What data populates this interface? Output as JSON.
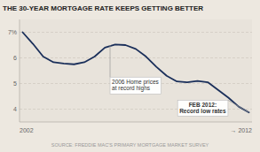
{
  "chart_data": {
    "type": "line",
    "title": "THE 30-YEAR MORTGAGE RATE KEEPS GETTING BETTER",
    "source": "SOURCE: FREDDIE MAC'S PRIMARY MORTGAGE MARKET SURVEY",
    "xlabel_left": "2002",
    "xlabel_right": "→ 2012",
    "x": [
      0,
      1,
      2,
      3,
      4,
      5,
      6,
      7,
      8,
      9,
      10,
      11,
      12,
      13,
      14,
      15,
      16,
      17,
      18,
      19,
      20,
      21,
      22
    ],
    "values": [
      7.0,
      6.55,
      6.05,
      5.83,
      5.78,
      5.75,
      5.83,
      6.05,
      6.4,
      6.52,
      6.5,
      6.35,
      6.05,
      5.65,
      5.3,
      5.08,
      5.05,
      5.1,
      5.05,
      4.75,
      4.45,
      4.1,
      3.87
    ],
    "color": "#1a2f5a",
    "xlim": [
      -0.3,
      22.3
    ],
    "ylim": [
      3.5,
      7.5
    ],
    "yticks": [
      4,
      5,
      6,
      {
        "value": 7,
        "label": "7%"
      }
    ],
    "grid": true,
    "tick_labels": "y",
    "annotations": [
      {
        "text": "2006 Home prices\nat record highs",
        "x": 8.5,
        "y": 6.5,
        "text_x": 8.5,
        "text_y": 5.25
      },
      {
        "text": "FEB 2012:\nRecord low rates",
        "x": 22,
        "y": 3.87,
        "text_x": 17.5,
        "text_y": 4.35
      }
    ]
  }
}
